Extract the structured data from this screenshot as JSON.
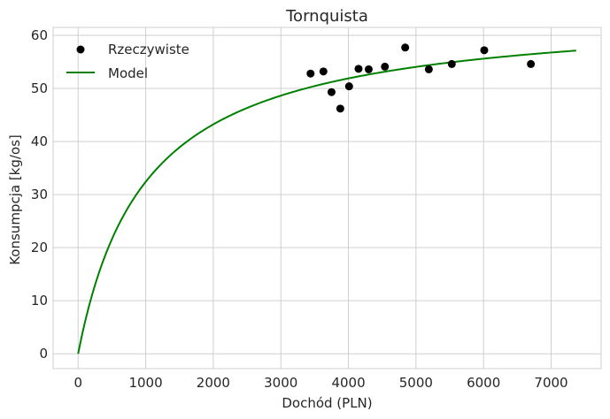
{
  "chart_data": {
    "type": "scatter",
    "title": "Tornquista",
    "xlabel": "Dochód (PLN)",
    "ylabel": "Konsumpcja [kg/os]",
    "xlim": [
      -370,
      7740
    ],
    "ylim": [
      -2.8,
      61.5
    ],
    "xticks": [
      0,
      1000,
      2000,
      3000,
      4000,
      5000,
      6000,
      7000
    ],
    "yticks": [
      0,
      10,
      20,
      30,
      40,
      50,
      60
    ],
    "xtick_labels": [
      "0",
      "1000",
      "2000",
      "3000",
      "4000",
      "5000",
      "6000",
      "7000"
    ],
    "ytick_labels": [
      "0",
      "10",
      "20",
      "30",
      "40",
      "50",
      "60"
    ],
    "grid": true,
    "legend_position": "top-left",
    "series": [
      {
        "name": "Rzeczywiste",
        "kind": "scatter",
        "color": "#000000",
        "points": [
          {
            "x": 3440,
            "y": 52.8
          },
          {
            "x": 3630,
            "y": 53.2
          },
          {
            "x": 3750,
            "y": 49.3
          },
          {
            "x": 3880,
            "y": 46.2
          },
          {
            "x": 4010,
            "y": 50.4
          },
          {
            "x": 4150,
            "y": 53.7
          },
          {
            "x": 4300,
            "y": 53.6
          },
          {
            "x": 4540,
            "y": 54.1
          },
          {
            "x": 4840,
            "y": 57.7
          },
          {
            "x": 5190,
            "y": 53.6
          },
          {
            "x": 5530,
            "y": 54.6
          },
          {
            "x": 6010,
            "y": 57.2
          },
          {
            "x": 6700,
            "y": 54.6
          }
        ]
      },
      {
        "name": "Model",
        "kind": "line",
        "color": "#008000",
        "function": "tornquist",
        "params": {
          "a": 64.9,
          "b": 1003
        },
        "x_range": [
          0,
          7370
        ]
      }
    ]
  }
}
